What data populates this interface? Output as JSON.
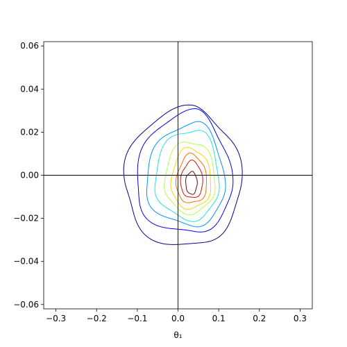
{
  "chart_data": {
    "type": "contour",
    "title": "",
    "xlabel": "θ₁",
    "ylabel": "",
    "xlim": [
      -0.33,
      0.33
    ],
    "ylim": [
      -0.062,
      0.062
    ],
    "x_ticks": [
      -0.3,
      -0.2,
      -0.1,
      0.0,
      0.1,
      0.2,
      0.3
    ],
    "x_tick_labels": [
      "−0.3",
      "−0.2",
      "−0.1",
      "0.0",
      "0.1",
      "0.2",
      "0.3"
    ],
    "y_ticks": [
      -0.06,
      -0.04,
      -0.02,
      0.0,
      0.02,
      0.04,
      0.06
    ],
    "y_tick_labels": [
      "−0.06",
      "−0.04",
      "−0.02",
      "0.00",
      "0.02",
      "0.04",
      "0.06"
    ],
    "reference_lines": {
      "x": 0.0,
      "y": 0.0
    },
    "grid": false,
    "colormap": "jet",
    "center": [
      0.033,
      -0.004
    ],
    "contour_levels": [
      {
        "level": 1,
        "color": "#00008f",
        "rx_left": 0.167,
        "rx_right": 0.12,
        "ry_top": 0.035,
        "ry_bottom": 0.029
      },
      {
        "level": 2,
        "color": "#0000f0",
        "rx_left": 0.137,
        "rx_right": 0.098,
        "ry_top": 0.033,
        "ry_bottom": 0.023
      },
      {
        "level": 3,
        "color": "#0090ff",
        "rx_left": 0.111,
        "rx_right": 0.082,
        "ry_top": 0.028,
        "ry_bottom": 0.0195
      },
      {
        "level": 4,
        "color": "#1ee6e0",
        "rx_left": 0.089,
        "rx_right": 0.068,
        "ry_top": 0.0255,
        "ry_bottom": 0.0165
      },
      {
        "level": 5,
        "color": "#b4ff4c",
        "rx_left": 0.066,
        "rx_right": 0.058,
        "ry_top": 0.02,
        "ry_bottom": 0.0135
      },
      {
        "level": 6,
        "color": "#ffd400",
        "rx_left": 0.05,
        "rx_right": 0.048,
        "ry_top": 0.0165,
        "ry_bottom": 0.0115
      },
      {
        "level": 7,
        "color": "#ff6a00",
        "rx_left": 0.037,
        "rx_right": 0.038,
        "ry_top": 0.0135,
        "ry_bottom": 0.009
      },
      {
        "level": 8,
        "color": "#d41000",
        "rx_left": 0.026,
        "rx_right": 0.028,
        "ry_top": 0.0105,
        "ry_bottom": 0.0065
      },
      {
        "level": 9,
        "color": "#7f0000",
        "rx_left": 0.014,
        "rx_right": 0.014,
        "ry_top": 0.0057,
        "ry_bottom": 0.0048
      }
    ]
  }
}
